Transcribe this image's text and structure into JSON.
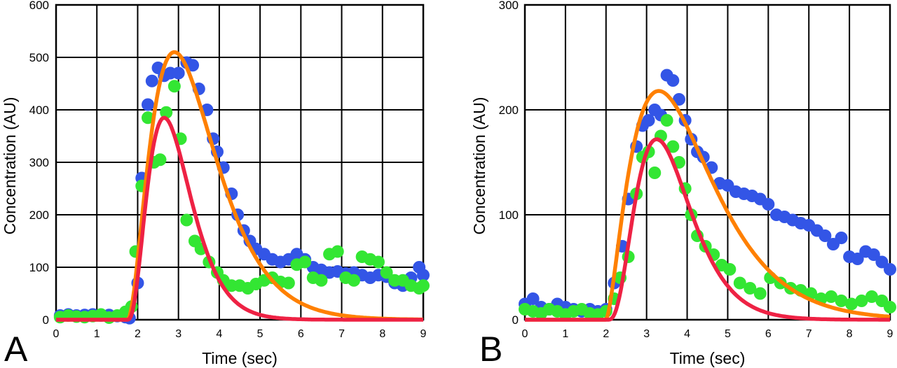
{
  "chart_data": [
    {
      "type": "scatter",
      "panel_label": "A",
      "xlabel": "Time (sec)",
      "ylabel": "Concentration (AU)",
      "xlim": [
        0,
        9
      ],
      "ylim": [
        0,
        600
      ],
      "x_ticks": [
        0,
        1,
        2,
        3,
        4,
        5,
        6,
        7,
        8,
        9
      ],
      "y_ticks": [
        0,
        100,
        200,
        300,
        400,
        500,
        600
      ],
      "grid": true,
      "series": [
        {
          "kind": "points",
          "color": "#3355e6",
          "points": [
            [
              0.1,
              8
            ],
            [
              0.3,
              10
            ],
            [
              0.5,
              8
            ],
            [
              0.7,
              9
            ],
            [
              0.9,
              10
            ],
            [
              1.1,
              8
            ],
            [
              1.3,
              9
            ],
            [
              1.5,
              7
            ],
            [
              1.7,
              5
            ],
            [
              1.8,
              3
            ],
            [
              2.0,
              70
            ],
            [
              2.1,
              270
            ],
            [
              2.25,
              410
            ],
            [
              2.35,
              455
            ],
            [
              2.5,
              480
            ],
            [
              2.65,
              465
            ],
            [
              2.8,
              470
            ],
            [
              3.0,
              470
            ],
            [
              3.2,
              490
            ],
            [
              3.35,
              485
            ],
            [
              3.5,
              440
            ],
            [
              3.7,
              400
            ],
            [
              3.85,
              345
            ],
            [
              3.95,
              320
            ],
            [
              4.1,
              290
            ],
            [
              4.3,
              240
            ],
            [
              4.45,
              200
            ],
            [
              4.6,
              170
            ],
            [
              4.75,
              150
            ],
            [
              4.9,
              135
            ],
            [
              5.1,
              125
            ],
            [
              5.3,
              115
            ],
            [
              5.5,
              110
            ],
            [
              5.7,
              115
            ],
            [
              5.9,
              125
            ],
            [
              6.1,
              115
            ],
            [
              6.3,
              100
            ],
            [
              6.5,
              95
            ],
            [
              6.7,
              90
            ],
            [
              6.9,
              92
            ],
            [
              7.1,
              88
            ],
            [
              7.3,
              90
            ],
            [
              7.5,
              85
            ],
            [
              7.7,
              80
            ],
            [
              7.9,
              85
            ],
            [
              8.1,
              82
            ],
            [
              8.3,
              70
            ],
            [
              8.5,
              65
            ],
            [
              8.7,
              80
            ],
            [
              8.9,
              100
            ],
            [
              9.0,
              85
            ]
          ]
        },
        {
          "kind": "points",
          "color": "#33e633",
          "points": [
            [
              0.1,
              5
            ],
            [
              0.3,
              8
            ],
            [
              0.5,
              6
            ],
            [
              0.7,
              5
            ],
            [
              0.9,
              7
            ],
            [
              1.1,
              10
            ],
            [
              1.3,
              4
            ],
            [
              1.5,
              8
            ],
            [
              1.7,
              15
            ],
            [
              1.85,
              25
            ],
            [
              1.95,
              130
            ],
            [
              2.1,
              255
            ],
            [
              2.25,
              385
            ],
            [
              2.4,
              300
            ],
            [
              2.55,
              305
            ],
            [
              2.7,
              395
            ],
            [
              2.9,
              445
            ],
            [
              3.05,
              345
            ],
            [
              3.2,
              190
            ],
            [
              3.4,
              150
            ],
            [
              3.55,
              135
            ],
            [
              3.75,
              110
            ],
            [
              3.95,
              90
            ],
            [
              4.1,
              75
            ],
            [
              4.3,
              65
            ],
            [
              4.5,
              65
            ],
            [
              4.7,
              60
            ],
            [
              4.9,
              68
            ],
            [
              5.1,
              75
            ],
            [
              5.3,
              80
            ],
            [
              5.5,
              72
            ],
            [
              5.7,
              70
            ],
            [
              5.9,
              105
            ],
            [
              6.1,
              110
            ],
            [
              6.3,
              80
            ],
            [
              6.5,
              75
            ],
            [
              6.7,
              125
            ],
            [
              6.9,
              130
            ],
            [
              7.1,
              80
            ],
            [
              7.3,
              75
            ],
            [
              7.5,
              120
            ],
            [
              7.7,
              115
            ],
            [
              7.9,
              110
            ],
            [
              8.1,
              90
            ],
            [
              8.3,
              75
            ],
            [
              8.5,
              75
            ],
            [
              8.7,
              65
            ],
            [
              8.9,
              60
            ],
            [
              9.0,
              65
            ]
          ]
        },
        {
          "kind": "curve",
          "color": "#ff8000",
          "t0": 1.75,
          "peak_time": 2.9,
          "peak_value": 510,
          "alpha": 2.0
        },
        {
          "kind": "curve",
          "color": "#ee2244",
          "t0": 1.75,
          "peak_time": 2.65,
          "peak_value": 385,
          "alpha": 2.8
        }
      ]
    },
    {
      "type": "scatter",
      "panel_label": "B",
      "xlabel": "Time (sec)",
      "ylabel": "Concentration (AU)",
      "xlim": [
        0,
        9
      ],
      "ylim": [
        0,
        300
      ],
      "x_ticks": [
        0,
        1,
        2,
        3,
        4,
        5,
        6,
        7,
        8,
        9
      ],
      "y_ticks": [
        0,
        100,
        200,
        300
      ],
      "grid": true,
      "series": [
        {
          "kind": "points",
          "color": "#3355e6",
          "points": [
            [
              0.0,
              15
            ],
            [
              0.2,
              20
            ],
            [
              0.4,
              12
            ],
            [
              0.6,
              10
            ],
            [
              0.8,
              15
            ],
            [
              1.0,
              12
            ],
            [
              1.2,
              10
            ],
            [
              1.4,
              8
            ],
            [
              1.6,
              10
            ],
            [
              1.8,
              8
            ],
            [
              2.0,
              10
            ],
            [
              2.2,
              35
            ],
            [
              2.4,
              70
            ],
            [
              2.55,
              115
            ],
            [
              2.75,
              165
            ],
            [
              2.9,
              185
            ],
            [
              3.05,
              190
            ],
            [
              3.2,
              200
            ],
            [
              3.35,
              195
            ],
            [
              3.5,
              233
            ],
            [
              3.65,
              228
            ],
            [
              3.8,
              210
            ],
            [
              3.95,
              190
            ],
            [
              4.1,
              172
            ],
            [
              4.25,
              160
            ],
            [
              4.4,
              155
            ],
            [
              4.6,
              145
            ],
            [
              4.8,
              130
            ],
            [
              5.0,
              128
            ],
            [
              5.2,
              122
            ],
            [
              5.4,
              120
            ],
            [
              5.6,
              118
            ],
            [
              5.8,
              115
            ],
            [
              6.0,
              110
            ],
            [
              6.2,
              100
            ],
            [
              6.4,
              98
            ],
            [
              6.6,
              95
            ],
            [
              6.8,
              92
            ],
            [
              7.0,
              90
            ],
            [
              7.2,
              85
            ],
            [
              7.4,
              80
            ],
            [
              7.6,
              72
            ],
            [
              7.8,
              78
            ],
            [
              8.0,
              60
            ],
            [
              8.2,
              58
            ],
            [
              8.4,
              65
            ],
            [
              8.6,
              62
            ],
            [
              8.8,
              55
            ],
            [
              9.0,
              48
            ]
          ]
        },
        {
          "kind": "points",
          "color": "#33e633",
          "points": [
            [
              0.0,
              10
            ],
            [
              0.2,
              8
            ],
            [
              0.4,
              6
            ],
            [
              0.6,
              10
            ],
            [
              0.8,
              8
            ],
            [
              1.0,
              5
            ],
            [
              1.2,
              8
            ],
            [
              1.4,
              10
            ],
            [
              1.6,
              6
            ],
            [
              1.8,
              5
            ],
            [
              2.0,
              8
            ],
            [
              2.2,
              20
            ],
            [
              2.35,
              40
            ],
            [
              2.55,
              60
            ],
            [
              2.75,
              120
            ],
            [
              2.9,
              155
            ],
            [
              3.05,
              160
            ],
            [
              3.2,
              140
            ],
            [
              3.35,
              175
            ],
            [
              3.5,
              190
            ],
            [
              3.65,
              165
            ],
            [
              3.8,
              150
            ],
            [
              3.95,
              125
            ],
            [
              4.1,
              100
            ],
            [
              4.25,
              80
            ],
            [
              4.45,
              70
            ],
            [
              4.65,
              62
            ],
            [
              4.85,
              52
            ],
            [
              5.05,
              48
            ],
            [
              5.3,
              35
            ],
            [
              5.55,
              30
            ],
            [
              5.8,
              25
            ],
            [
              6.05,
              40
            ],
            [
              6.3,
              35
            ],
            [
              6.55,
              30
            ],
            [
              6.8,
              28
            ],
            [
              7.05,
              25
            ],
            [
              7.3,
              20
            ],
            [
              7.55,
              22
            ],
            [
              7.8,
              18
            ],
            [
              8.05,
              15
            ],
            [
              8.3,
              18
            ],
            [
              8.55,
              22
            ],
            [
              8.8,
              18
            ],
            [
              9.0,
              12
            ]
          ]
        },
        {
          "kind": "curve",
          "color": "#ff8000",
          "t0": 2.0,
          "peak_time": 3.3,
          "peak_value": 218,
          "alpha": 1.6
        },
        {
          "kind": "curve",
          "color": "#ee2244",
          "t0": 2.05,
          "peak_time": 3.25,
          "peak_value": 172,
          "alpha": 3.0
        }
      ]
    }
  ]
}
